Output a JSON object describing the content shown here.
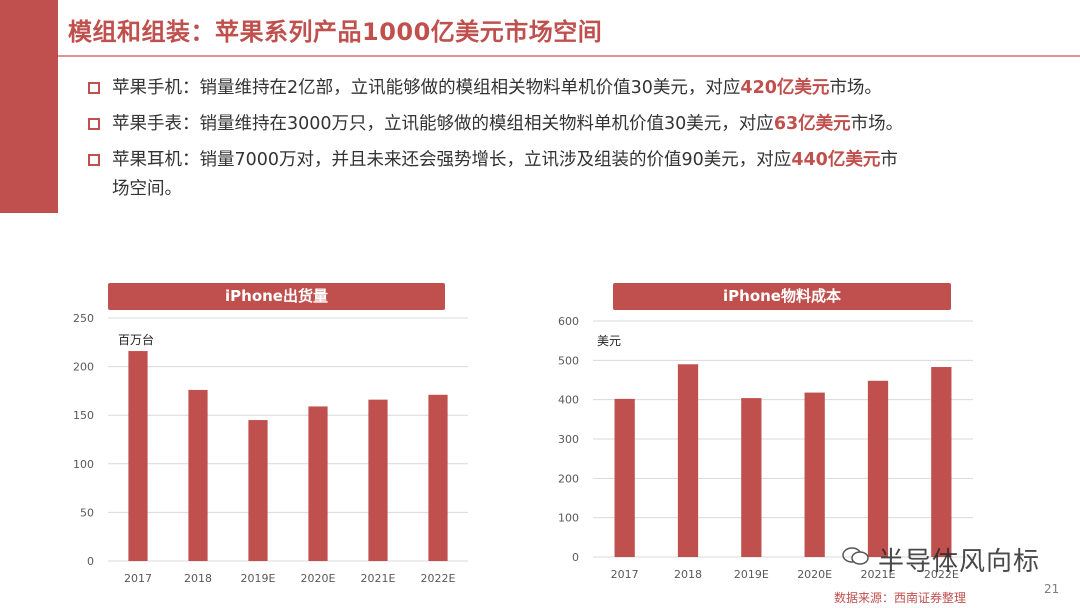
{
  "title": "模组和组装：苹果系列产品1000亿美元市场空间",
  "bullets": [
    {
      "pre": "苹果手机：销量维持在2亿部，立讯能够做的模组相关物料单机价值30美元，对应",
      "em": "420亿美元",
      "post": "市场。",
      "cont": ""
    },
    {
      "pre": "苹果手表：销量维持在3000万只，立讯能够做的模组相关物料单机价值30美元，对应",
      "em": "63亿美元",
      "post": "市场。",
      "cont": ""
    },
    {
      "pre": "苹果耳机：销量7000万对，并且未来还会强势增长，立讯涉及组装的价值90美元，对应",
      "em": "440亿美元",
      "post": "市",
      "cont": "场空间。"
    }
  ],
  "accent_color": "#c0504d",
  "chart_data": [
    {
      "type": "bar",
      "title": "iPhone出货量",
      "ylabel": "百万台",
      "categories": [
        "2017",
        "2018",
        "2019E",
        "2020E",
        "2021E",
        "2022E"
      ],
      "values": [
        216,
        176,
        145,
        159,
        166,
        171
      ],
      "ylim": [
        0,
        250
      ],
      "yticks": [
        0,
        50,
        100,
        150,
        200,
        250
      ],
      "grid": true,
      "color": "#c0504d"
    },
    {
      "type": "bar",
      "title": "iPhone物料成本",
      "ylabel": "美元",
      "categories": [
        "2017",
        "2018",
        "2019E",
        "2020E",
        "2021E",
        "2022E"
      ],
      "values": [
        402,
        490,
        404,
        418,
        448,
        483
      ],
      "ylim": [
        0,
        600
      ],
      "yticks": [
        0,
        100,
        200,
        300,
        400,
        500,
        600
      ],
      "grid": true,
      "color": "#c0504d"
    }
  ],
  "watermark": "半导体风向标",
  "watermark_icon": "wechat-icon",
  "page_number": "21",
  "source": "数据来源：西南证券整理"
}
